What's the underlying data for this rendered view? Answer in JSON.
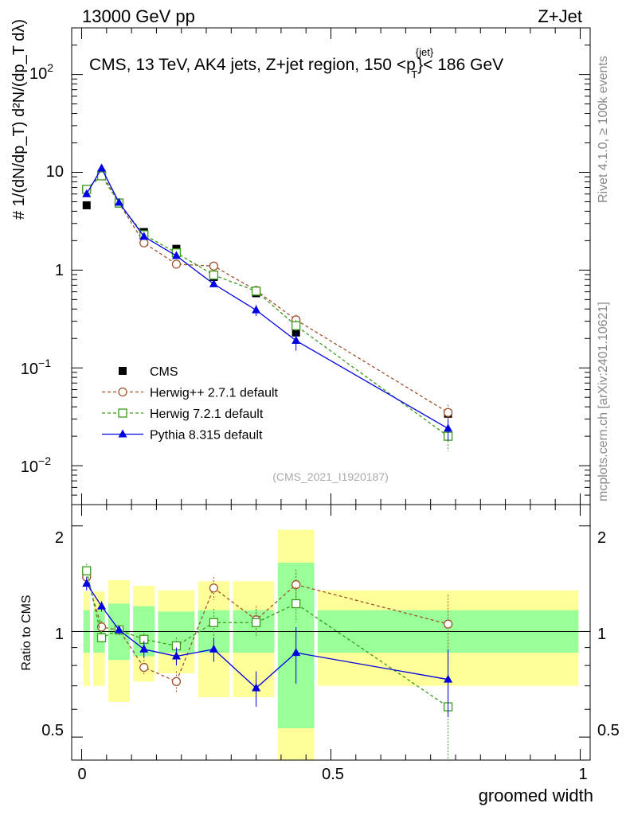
{
  "header": {
    "left": "13000 GeV pp",
    "right": "Z+Jet"
  },
  "side_labels": {
    "rivet": "Rivet 4.1.0, ≥ 100k events",
    "mcplots": "mcplots.cern.ch [arXiv:2401.10621]"
  },
  "chart_data": [
    {
      "type": "scatter",
      "panel": "main",
      "title": "CMS, 13 TeV, AK4 jets, Z+jet region, 150 <p",
      "title_sup": "{jet}",
      "title_sub": "T",
      "title_tail": "}< 186 GeV",
      "ylabel": "# 1/(dN/dp_T) d²N/(dp_T dλ)",
      "yscale": "log",
      "ylim": [
        0.004,
        300
      ],
      "xlim": [
        -0.02,
        1.02
      ],
      "y_tick_labels": {
        "t001": "10",
        "t001_exp": "−2",
        "t01": "10",
        "t01_exp": "−1",
        "t1": "1",
        "t10": "10",
        "t100": "10",
        "t100_exp": "2"
      },
      "watermark": "(CMS_2021_I1920187)",
      "x": [
        0.01,
        0.04,
        0.075,
        0.125,
        0.19,
        0.265,
        0.35,
        0.43,
        0.735
      ],
      "x_bins": [
        [
          0.0,
          0.02
        ],
        [
          0.02,
          0.05
        ],
        [
          0.05,
          0.1
        ],
        [
          0.1,
          0.15
        ],
        [
          0.15,
          0.23
        ],
        [
          0.23,
          0.3
        ],
        [
          0.3,
          0.39
        ],
        [
          0.39,
          0.47
        ],
        [
          0.47,
          1.0
        ]
      ],
      "series": [
        {
          "name": "CMS",
          "marker": "square-filled",
          "color": "#000000",
          "values": [
            4.6,
            9.5,
            4.8,
            2.45,
            1.65,
            0.85,
            0.58,
            0.23,
            0.034
          ],
          "errors": [
            0.2,
            0.3,
            0.15,
            0.08,
            0.06,
            0.03,
            0.03,
            0.02,
            0.003
          ]
        },
        {
          "name": "Herwig++ 2.7.1 default",
          "marker": "circle-open",
          "color": "#a0522d",
          "dash": "4,3",
          "values": [
            6.6,
            9.8,
            4.85,
            1.9,
            1.15,
            1.1,
            0.62,
            0.31,
            0.035
          ],
          "errors": [
            0.3,
            0.3,
            0.15,
            0.08,
            0.06,
            0.05,
            0.05,
            0.04,
            0.007
          ]
        },
        {
          "name": "Herwig 7.2.1 default",
          "marker": "square-open",
          "color": "#3a9a1a",
          "dash": "4,3",
          "values": [
            6.7,
            9.2,
            4.85,
            2.3,
            1.5,
            0.89,
            0.61,
            0.27,
            0.02
          ],
          "errors": [
            0.3,
            0.3,
            0.15,
            0.08,
            0.06,
            0.05,
            0.05,
            0.04,
            0.006
          ]
        },
        {
          "name": "Pythia 8.315 default",
          "marker": "triangle-filled",
          "color": "#0000e0",
          "dash": "",
          "values": [
            6.0,
            11.0,
            4.9,
            2.2,
            1.4,
            0.72,
            0.39,
            0.19,
            0.024
          ],
          "errors": [
            0.3,
            0.35,
            0.15,
            0.08,
            0.06,
            0.05,
            0.05,
            0.04,
            0.006
          ]
        }
      ]
    },
    {
      "type": "scatter",
      "panel": "ratio",
      "ylabel": "Ratio to CMS",
      "xlabel": "groomed width",
      "yscale": "log",
      "ylim": [
        0.43,
        2.3
      ],
      "xlim": [
        -0.02,
        1.02
      ],
      "x_tick_labels": [
        "0",
        "0.5",
        "1"
      ],
      "y_tick_labels": [
        "0.5",
        "1",
        "2"
      ],
      "band_inner": [
        [
          0.87,
          1.15
        ],
        [
          0.87,
          1.15
        ],
        [
          0.83,
          1.2
        ],
        [
          0.85,
          1.18
        ],
        [
          0.87,
          1.14
        ],
        [
          0.87,
          1.15
        ],
        [
          0.87,
          1.15
        ],
        [
          0.53,
          1.57
        ],
        [
          0.87,
          1.15
        ]
      ],
      "band_outer": [
        [
          0.7,
          1.3
        ],
        [
          0.7,
          1.3
        ],
        [
          0.63,
          1.4
        ],
        [
          0.72,
          1.35
        ],
        [
          0.76,
          1.31
        ],
        [
          0.65,
          1.39
        ],
        [
          0.65,
          1.39
        ],
        [
          0.43,
          1.95
        ],
        [
          0.7,
          1.31
        ]
      ],
      "series": [
        {
          "name": "Herwig++ 2.7.1 default",
          "values": [
            1.43,
            1.03,
            1.01,
            0.79,
            0.72,
            1.33,
            1.08,
            1.36,
            1.05
          ],
          "errors": [
            0.06,
            0.04,
            0.03,
            0.04,
            0.05,
            0.1,
            0.1,
            0.14,
            0.22
          ]
        },
        {
          "name": "Herwig 7.2.1 default",
          "values": [
            1.49,
            0.96,
            1.01,
            0.95,
            0.91,
            1.06,
            1.06,
            1.2,
            0.61
          ],
          "errors": [
            0.07,
            0.04,
            0.03,
            0.04,
            0.05,
            0.1,
            0.1,
            0.14,
            0.23
          ]
        },
        {
          "name": "Pythia 8.315 default",
          "values": [
            1.37,
            1.18,
            1.01,
            0.89,
            0.85,
            0.89,
            0.69,
            0.87,
            0.73
          ],
          "errors": [
            0.06,
            0.04,
            0.03,
            0.05,
            0.05,
            0.07,
            0.08,
            0.16,
            0.16
          ]
        }
      ]
    }
  ]
}
